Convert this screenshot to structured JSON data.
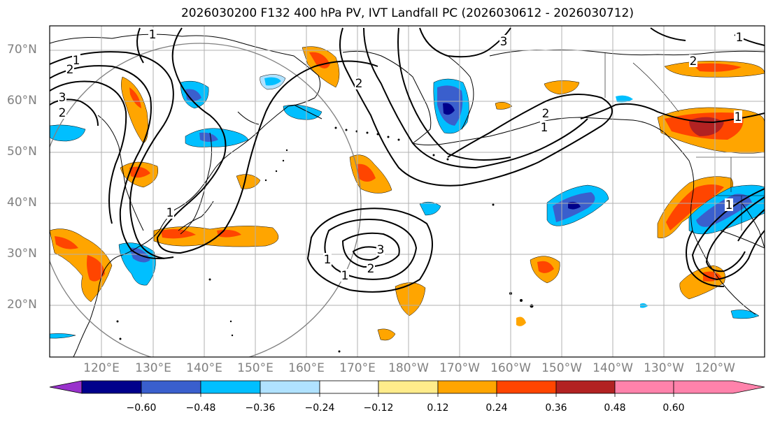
{
  "title": "2026030200 F132 400 hPa PV, IVT Landfall PC (2026030612 - 2026030712)",
  "map": {
    "lat_labels": [
      "70°N",
      "60°N",
      "50°N",
      "40°N",
      "30°N",
      "20°N"
    ],
    "lon_labels": [
      "120°E",
      "130°E",
      "140°E",
      "150°E",
      "160°E",
      "170°E",
      "180°W",
      "170°W",
      "160°W",
      "150°W",
      "140°W",
      "130°W",
      "120°W"
    ],
    "contour_labels": [
      "1",
      "2",
      "3",
      "2",
      "1",
      "1",
      "2",
      "3",
      "1",
      "2",
      "1",
      "1",
      "2",
      "3",
      "1",
      "1",
      "2",
      "1"
    ]
  },
  "colorbar": {
    "ticks": [
      "−0.60",
      "−0.48",
      "−0.36",
      "−0.24",
      "−0.12",
      "0.12",
      "0.24",
      "0.36",
      "0.48",
      "0.60"
    ],
    "colors": [
      "#9932cc",
      "#00008b",
      "#3a5fcd",
      "#00bfff",
      "#b0e2ff",
      "#ffffff",
      "#ffec8b",
      "#ffa500",
      "#ff4500",
      "#b22222",
      "#ff82ab"
    ]
  }
}
